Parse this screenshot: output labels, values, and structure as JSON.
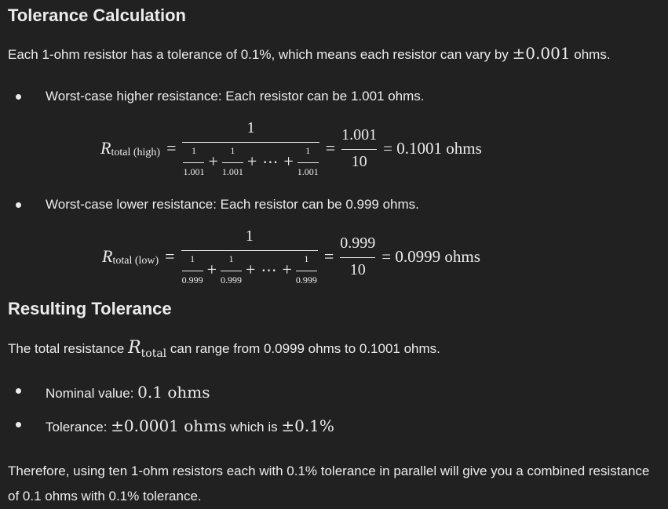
{
  "tolerance": {
    "heading": "Tolerance Calculation",
    "intro_before": "Each 1-ohm resistor has a tolerance of 0.1%, which means each resistor can vary by ",
    "intro_math": "±0.001",
    "intro_after": " ohms.",
    "bullet_high": "Worst-case higher resistance: Each resistor can be 1.001 ohms.",
    "bullet_low": "Worst-case lower resistance: Each resistor can be 0.999 ohms."
  },
  "eq_high": {
    "R": "R",
    "sub": "total (high)",
    "eq": "=",
    "big_num": "1",
    "small_num": "1",
    "small_den": "1.001",
    "plus": "+",
    "dots": "⋯",
    "frac2_num": "1.001",
    "frac2_den": "10",
    "result": "= 0.1001 ohms"
  },
  "eq_low": {
    "R": "R",
    "sub": "total (low)",
    "eq": "=",
    "big_num": "1",
    "small_num": "1",
    "small_den": "0.999",
    "plus": "+",
    "dots": "⋯",
    "frac2_num": "0.999",
    "frac2_den": "10",
    "result": "= 0.0999 ohms"
  },
  "resulting": {
    "heading": "Resulting Tolerance",
    "range_before": "The total resistance ",
    "range_R": "R",
    "range_sub": "total",
    "range_after": " can range from 0.0999 ohms to 0.1001 ohms.",
    "nominal_label": "Nominal value: ",
    "nominal_math": "0.1 ohms",
    "tol_label": "Tolerance: ",
    "tol_math": "±0.0001 ohms",
    "tol_mid": " which is ",
    "tol_pct": "±0.1%"
  },
  "conclusion": "Therefore, using ten 1-ohm resistors each with 0.1% tolerance in parallel will give you a combined resistance of 0.1 ohms with 0.1% tolerance."
}
